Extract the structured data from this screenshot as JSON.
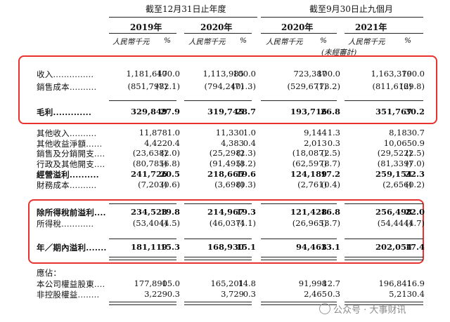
{
  "header": {
    "group_fy": "截至12月31日止年度",
    "group_9m": "截至9月30日止九個月",
    "years": [
      "2019年",
      "2020年",
      "2020年",
      "2021年"
    ],
    "unit": "人民幣千元",
    "pct": "%",
    "unaudited": "(未經審計)"
  },
  "rows": [
    {
      "label": "收入",
      "dots": "...............",
      "v": [
        "1,181,647",
        "100.0",
        "1,113,985",
        "100.0",
        "723,387",
        "100.0",
        "1,163,379",
        "100.0"
      ]
    },
    {
      "label": "銷售成本",
      "dots": "..........",
      "v": [
        "(851,798)",
        "(72.1)",
        "(794,240)",
        "(71.3)",
        "(529,671)",
        "(73.2)",
        "(811,612)",
        "(69.8)"
      ]
    },
    {
      "label": "毛利",
      "dots": ".............",
      "v": [
        "329,849",
        "27.9",
        "319,745",
        "28.7",
        "193,716",
        "26.8",
        "351,767",
        "30.2"
      ]
    },
    {
      "label": "其他收入",
      "dots": "..........",
      "v": [
        "11,878",
        "1.0",
        "11,330",
        "1.0",
        "9,144",
        "1.3",
        "8,183",
        "0.7"
      ]
    },
    {
      "label": "其他收益淨額",
      "dots": "......",
      "v": [
        "4,422",
        "0.4",
        "4,383",
        "0.4",
        "2,013",
        "0.3",
        "10,065",
        "0.9"
      ]
    },
    {
      "label": "銷售及分銷開支",
      "dots": "....",
      "v": [
        "(23,638)",
        "(2.0)",
        "(25,298)",
        "(2.3)",
        "(18,087)",
        "(2.5)",
        "(29,522)",
        "(2.5)"
      ]
    },
    {
      "label": "行政及其他開支",
      "dots": "....",
      "v": [
        "(80,785)",
        "(6.8)",
        "(91,495)",
        "(8.2)",
        "(62,597)",
        "(8.7)",
        "(81,339)",
        "(7.0)"
      ]
    },
    {
      "label": "經營溢利",
      "dots": "..........",
      "v": [
        "241,726",
        "20.5",
        "218,665",
        "19.6",
        "124,189",
        "17.2",
        "259,154",
        "22.3"
      ]
    },
    {
      "label": "財務成本",
      "dots": "..........",
      "v": [
        "(7,203)",
        "(0.6)",
        "(3,698)",
        "(0.3)",
        "(2,761)",
        "(0.4)",
        "(2,656)",
        "(0.2)"
      ]
    },
    {
      "label": "除所得稅前溢利",
      "dots": "....",
      "v": [
        "234,523",
        "19.8",
        "214,967",
        "19.3",
        "121,428",
        "16.8",
        "256,498",
        "22.0"
      ]
    },
    {
      "label": "所得稅",
      "dots": "............",
      "v": [
        "(53,404)",
        "(4.5)",
        "(46,037)",
        "(4.1)",
        "(26,965)",
        "(3.7)",
        "(54,444)",
        "(4.7)"
      ]
    },
    {
      "label": "年／期內溢利",
      "dots": ".......",
      "v": [
        "181,119",
        "15.3",
        "168,930",
        "15.1",
        "94,463",
        "13.1",
        "202,054",
        "17.4"
      ]
    },
    {
      "label": "應佔：",
      "dots": "",
      "v": [
        "",
        "",
        "",
        "",
        "",
        "",
        "",
        ""
      ]
    },
    {
      "label": "本公司權益股東",
      "dots": "....",
      "v": [
        "177,890",
        "15.0",
        "165,201",
        "14.8",
        "91,998",
        "12.7",
        "196,841",
        "16.9"
      ]
    },
    {
      "label": "非控股權益",
      "dots": "........",
      "v": [
        "3,229",
        "0.3",
        "3,729",
        "0.3",
        "2,465",
        "0.3",
        "5,213",
        "0.4"
      ]
    }
  ],
  "watermark": "公众号 · 大事财讯"
}
